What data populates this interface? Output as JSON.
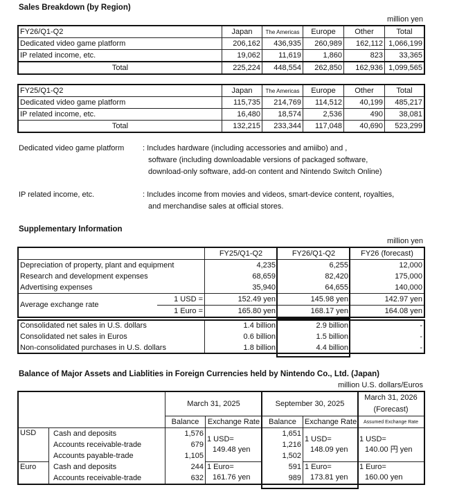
{
  "sales": {
    "title": "Sales Breakdown (by Region)",
    "unit": "million yen",
    "columns": [
      "Japan",
      "The Americas",
      "Europe",
      "Other",
      "Total"
    ],
    "tables": [
      {
        "period": "FY26/Q1-Q2",
        "rows": [
          {
            "label": "Dedicated video game platform",
            "values": [
              "206,162",
              "436,935",
              "260,989",
              "162,112",
              "1,066,199"
            ]
          },
          {
            "label": "IP related income, etc.",
            "values": [
              "19,062",
              "11,619",
              "1,860",
              "823",
              "33,365"
            ]
          },
          {
            "label": "Total",
            "values": [
              "225,224",
              "448,554",
              "262,850",
              "162,936",
              "1,099,565"
            ]
          }
        ]
      },
      {
        "period": "FY25/Q1-Q2",
        "rows": [
          {
            "label": "Dedicated video game platform",
            "values": [
              "115,735",
              "214,769",
              "114,512",
              "40,199",
              "485,217"
            ]
          },
          {
            "label": "IP related income, etc.",
            "values": [
              "16,480",
              "18,574",
              "2,536",
              "490",
              "38,081"
            ]
          },
          {
            "label": "Total",
            "values": [
              "132,215",
              "233,344",
              "117,048",
              "40,690",
              "523,299"
            ]
          }
        ]
      }
    ],
    "notes": [
      {
        "term": "Dedicated video game platform",
        "lines": [
          ": Includes hardware (including accessories and amiibo) and ,",
          "software (including downloadable versions of packaged software,",
          "download-only software, add-on content and Nintendo Switch Online)"
        ]
      },
      {
        "term": "IP related income, etc.",
        "lines": [
          ": Includes income from movies and videos, smart-device content, royalties,",
          "and merchandise sales at official stores."
        ]
      }
    ]
  },
  "supp": {
    "title": "Supplementary Information",
    "unit": "million yen",
    "columns": [
      "FY25/Q1-Q2",
      "FY26/Q1-Q2",
      "FY26 (forecast)"
    ],
    "rows": [
      {
        "label": "Depreciation of property, plant and equipment",
        "values": [
          "4,235",
          "6,255",
          "12,000"
        ]
      },
      {
        "label": "Research and development expenses",
        "values": [
          "68,659",
          "82,420",
          "175,000"
        ]
      },
      {
        "label": "Advertising expenses",
        "values": [
          "35,940",
          "64,655",
          "140,000"
        ]
      }
    ],
    "fx_label": "Average exchange rate",
    "fx": [
      {
        "unit": "1 USD =",
        "values": [
          "152.49 yen",
          "145.98 yen",
          "142.97 yen"
        ]
      },
      {
        "unit": "1 Euro =",
        "values": [
          "165.80 yen",
          "168.17 yen",
          "164.08 yen"
        ]
      }
    ],
    "rows2": [
      {
        "label": "Consolidated net sales in U.S. dollars",
        "values": [
          "1.4 billion",
          "2.9 billion",
          "-"
        ]
      },
      {
        "label": "Consolidated net sales in Euros",
        "values": [
          "0.6 billion",
          "1.5 billion",
          "-"
        ]
      },
      {
        "label": "Non-consolidated purchases in U.S. dollars",
        "values": [
          "1.8 billion",
          "4.4 billion",
          "-"
        ]
      }
    ]
  },
  "balance": {
    "title": "Balance of Major Assets and Liablities in Foreign Currencies held by Nintendo Co., Ltd. (Japan)",
    "unit": "million U.S. dollars/Euros",
    "periods": [
      "March 31, 2025",
      "September 30, 2025",
      "March 31, 2026",
      "(Forecast)"
    ],
    "sub": [
      "Balance",
      "Exchange Rate",
      "Balance",
      "Exchange Rate",
      "Assumed Exchange Rate"
    ],
    "usd": {
      "currency": "USD",
      "items": [
        "Cash and deposits",
        "Accounts receivable-trade",
        "Accounts payable-trade"
      ],
      "bal1": [
        "1,576",
        "679",
        "1,105"
      ],
      "bal2": [
        "1,651",
        "1,216",
        "1,502"
      ],
      "rate1": [
        "1 USD=",
        "149.48 yen"
      ],
      "rate2": [
        "1 USD=",
        "148.09 yen"
      ],
      "rate3": [
        "1 USD=",
        "140.00 円 yen"
      ]
    },
    "euro": {
      "currency": "Euro",
      "items": [
        "Cash and deposits",
        "Accounts receivable-trade"
      ],
      "bal1": [
        "244",
        "632"
      ],
      "bal2": [
        "591",
        "989"
      ],
      "rate1": [
        "1 Euro=",
        "161.76 yen"
      ],
      "rate2": [
        "1 Euro=",
        "173.81 yen"
      ],
      "rate3": [
        "1 Euro=",
        "160.00  yen"
      ]
    }
  }
}
